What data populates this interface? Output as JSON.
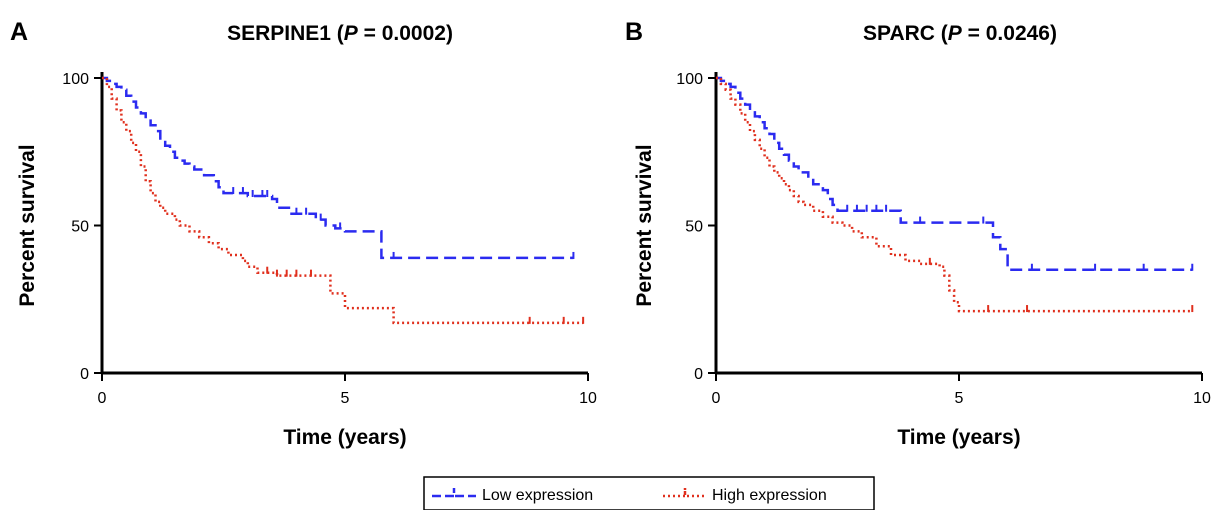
{
  "chart_data": [
    {
      "type": "line",
      "panel_label": "A",
      "title_gene": "SERPINE1",
      "title_open": " (",
      "title_p": "P",
      "title_rest": " = 0.0002)",
      "xlabel": "Time (years)",
      "ylabel": "Percent survival",
      "xlim": [
        0,
        10
      ],
      "ylim": [
        0,
        100
      ],
      "xticks": [
        0,
        5,
        10
      ],
      "yticks": [
        0,
        50,
        100
      ],
      "grid": false,
      "series": [
        {
          "name": "Low expression",
          "color": "#2b2bf0",
          "style": "dashed",
          "steps": [
            [
              0,
              100
            ],
            [
              0.1,
              99
            ],
            [
              0.2,
              98
            ],
            [
              0.3,
              97
            ],
            [
              0.4,
              96
            ],
            [
              0.5,
              94
            ],
            [
              0.6,
              92
            ],
            [
              0.7,
              90
            ],
            [
              0.8,
              88
            ],
            [
              0.9,
              86
            ],
            [
              1.0,
              84
            ],
            [
              1.1,
              82
            ],
            [
              1.2,
              79
            ],
            [
              1.3,
              77
            ],
            [
              1.4,
              75
            ],
            [
              1.5,
              73
            ],
            [
              1.6,
              72
            ],
            [
              1.7,
              71
            ],
            [
              1.8,
              70
            ],
            [
              1.9,
              69
            ],
            [
              2.1,
              67
            ],
            [
              2.3,
              65
            ],
            [
              2.4,
              63
            ],
            [
              2.5,
              61
            ],
            [
              3.0,
              60
            ],
            [
              3.5,
              59
            ],
            [
              3.6,
              56
            ],
            [
              3.9,
              54
            ],
            [
              4.4,
              52
            ],
            [
              4.6,
              50
            ],
            [
              4.8,
              49
            ],
            [
              5.0,
              48
            ],
            [
              5.75,
              39
            ],
            [
              9.7,
              39
            ]
          ],
          "censor_x": [
            2.7,
            2.9,
            3.1,
            3.3,
            3.4,
            4.0,
            4.2,
            4.5,
            4.9,
            6.0,
            9.7
          ]
        },
        {
          "name": "High expression",
          "color": "#e0301e",
          "style": "dotted",
          "steps": [
            [
              0,
              100
            ],
            [
              0.1,
              97
            ],
            [
              0.2,
              93
            ],
            [
              0.3,
              89
            ],
            [
              0.4,
              85
            ],
            [
              0.5,
              82
            ],
            [
              0.6,
              78
            ],
            [
              0.7,
              75
            ],
            [
              0.8,
              70
            ],
            [
              0.9,
              65
            ],
            [
              1.0,
              61
            ],
            [
              1.1,
              58
            ],
            [
              1.2,
              56
            ],
            [
              1.3,
              54
            ],
            [
              1.5,
              52
            ],
            [
              1.6,
              50
            ],
            [
              1.8,
              48
            ],
            [
              2.0,
              46
            ],
            [
              2.2,
              44
            ],
            [
              2.4,
              42
            ],
            [
              2.6,
              40
            ],
            [
              2.9,
              38
            ],
            [
              3.0,
              36
            ],
            [
              3.2,
              34
            ],
            [
              3.6,
              33
            ],
            [
              4.7,
              27
            ],
            [
              5.0,
              22
            ],
            [
              6.0,
              17
            ],
            [
              9.9,
              17
            ]
          ],
          "censor_x": [
            3.4,
            3.6,
            3.8,
            4.0,
            4.3,
            8.8,
            9.5,
            9.9
          ]
        }
      ]
    },
    {
      "type": "line",
      "panel_label": "B",
      "title_gene": "SPARC",
      "title_open": " (",
      "title_p": "P",
      "title_rest": " = 0.0246)",
      "xlabel": "Time (years)",
      "ylabel": "Percent survival",
      "xlim": [
        0,
        10
      ],
      "ylim": [
        0,
        100
      ],
      "xticks": [
        0,
        5,
        10
      ],
      "yticks": [
        0,
        50,
        100
      ],
      "grid": false,
      "series": [
        {
          "name": "Low expression",
          "color": "#2b2bf0",
          "style": "dashed",
          "steps": [
            [
              0,
              100
            ],
            [
              0.1,
              99
            ],
            [
              0.2,
              98
            ],
            [
              0.3,
              97
            ],
            [
              0.4,
              95
            ],
            [
              0.5,
              93
            ],
            [
              0.6,
              91
            ],
            [
              0.7,
              89
            ],
            [
              0.8,
              87
            ],
            [
              0.9,
              85
            ],
            [
              1.0,
              83
            ],
            [
              1.1,
              81
            ],
            [
              1.2,
              78
            ],
            [
              1.3,
              76
            ],
            [
              1.4,
              74
            ],
            [
              1.5,
              72
            ],
            [
              1.6,
              70
            ],
            [
              1.7,
              68
            ],
            [
              1.9,
              66
            ],
            [
              2.0,
              64
            ],
            [
              2.2,
              62
            ],
            [
              2.3,
              59
            ],
            [
              2.4,
              57
            ],
            [
              2.5,
              55
            ],
            [
              3.8,
              51
            ],
            [
              5.7,
              46
            ],
            [
              5.85,
              42
            ],
            [
              6.0,
              35
            ],
            [
              9.8,
              35
            ]
          ],
          "censor_x": [
            2.7,
            2.9,
            3.1,
            3.3,
            3.5,
            4.2,
            5.5,
            6.5,
            7.8,
            8.8,
            9.8
          ]
        },
        {
          "name": "High expression",
          "color": "#e0301e",
          "style": "dotted",
          "steps": [
            [
              0,
              100
            ],
            [
              0.1,
              98
            ],
            [
              0.2,
              96
            ],
            [
              0.3,
              93
            ],
            [
              0.4,
              91
            ],
            [
              0.5,
              88
            ],
            [
              0.6,
              85
            ],
            [
              0.7,
              82
            ],
            [
              0.8,
              79
            ],
            [
              0.9,
              76
            ],
            [
              1.0,
              73
            ],
            [
              1.1,
              70
            ],
            [
              1.2,
              68
            ],
            [
              1.3,
              66
            ],
            [
              1.4,
              64
            ],
            [
              1.5,
              62
            ],
            [
              1.6,
              60
            ],
            [
              1.7,
              58
            ],
            [
              1.8,
              57
            ],
            [
              2.0,
              55
            ],
            [
              2.2,
              53
            ],
            [
              2.4,
              51
            ],
            [
              2.6,
              50
            ],
            [
              2.8,
              48
            ],
            [
              3.0,
              46
            ],
            [
              3.3,
              43
            ],
            [
              3.6,
              40
            ],
            [
              3.9,
              38
            ],
            [
              4.2,
              37
            ],
            [
              4.6,
              36
            ],
            [
              4.7,
              33
            ],
            [
              4.8,
              28
            ],
            [
              4.9,
              24
            ],
            [
              5.0,
              21
            ],
            [
              9.8,
              21
            ]
          ],
          "censor_x": [
            4.4,
            5.6,
            6.4,
            9.8
          ]
        }
      ]
    }
  ],
  "legend": {
    "items": [
      {
        "label": "Low expression",
        "color": "#2b2bf0",
        "style": "dashed"
      },
      {
        "label": "High expression",
        "color": "#e0301e",
        "style": "dotted"
      }
    ]
  }
}
